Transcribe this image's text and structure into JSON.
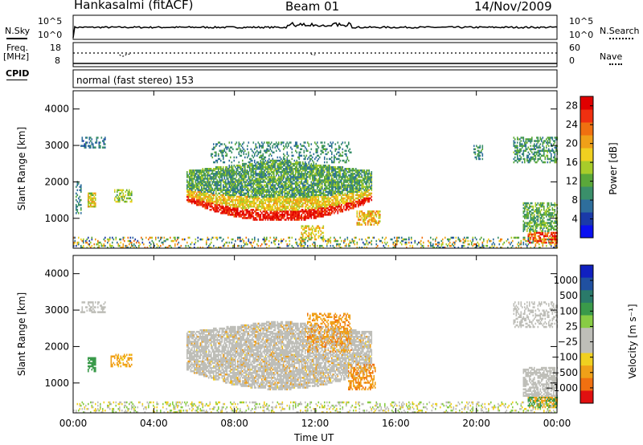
{
  "header": {
    "station": "Hankasalmi (fitACF)",
    "beam": "Beam 01",
    "date": "14/Nov/2009"
  },
  "sky_panel": {
    "left_label": "N.Sky",
    "right_label": "N.Search",
    "ticks_left": [
      "10^5",
      "10^0"
    ],
    "ticks_right": [
      "10^5",
      "10^0"
    ]
  },
  "freq_panel": {
    "label_line1": "Freq.",
    "label_line2": "[MHz]",
    "ticks_left": [
      "18",
      "8"
    ],
    "ticks_right": [
      "60",
      "0"
    ],
    "right_label": "Nave"
  },
  "cpid": {
    "label": "CPID",
    "value": "normal (fast stereo) 153"
  },
  "colors": {
    "power_scale": [
      "#0a10f0",
      "#1a3aa8",
      "#2e6e9c",
      "#3a8f6a",
      "#5aa83a",
      "#a8cc2a",
      "#f0d020",
      "#f0a018",
      "#f07010",
      "#f03010",
      "#e00000"
    ],
    "velocity_scale": [
      "#1020c0",
      "#2050a0",
      "#2a7a6a",
      "#3a9a4a",
      "#88cc44",
      "#bebeb8",
      "#bebeb8",
      "#f0d020",
      "#f0a018",
      "#f07010",
      "#e01010"
    ]
  },
  "chart_data": [
    {
      "type": "heatmap",
      "title": "",
      "xlabel": "",
      "ylabel": "Slant Range [km]",
      "xlim": [
        "00:00",
        "00:00"
      ],
      "ylim": [
        180,
        4500
      ],
      "x_ticks": [
        "00:00",
        "04:00",
        "08:00",
        "12:00",
        "16:00",
        "20:00",
        "00:00"
      ],
      "y_ticks": [
        1000,
        2000,
        3000,
        4000
      ],
      "colorbar": {
        "label": "Power [dB]",
        "ticks": [
          4,
          8,
          12,
          16,
          20,
          24,
          28
        ],
        "range": [
          0,
          30
        ]
      }
    },
    {
      "type": "heatmap",
      "title": "",
      "xlabel": "Time UT",
      "ylabel": "Slant Range [km]",
      "xlim": [
        "00:00",
        "00:00"
      ],
      "ylim": [
        180,
        4500
      ],
      "x_ticks": [
        "00:00",
        "04:00",
        "08:00",
        "12:00",
        "16:00",
        "20:00",
        "00:00"
      ],
      "y_ticks": [
        1000,
        2000,
        3000,
        4000
      ],
      "colorbar": {
        "label": "Velocity [m s⁻¹]",
        "ticks": [
          "1000",
          "500",
          "100",
          "25",
          "−25",
          "−100",
          "−500",
          "−1000"
        ]
      }
    }
  ]
}
